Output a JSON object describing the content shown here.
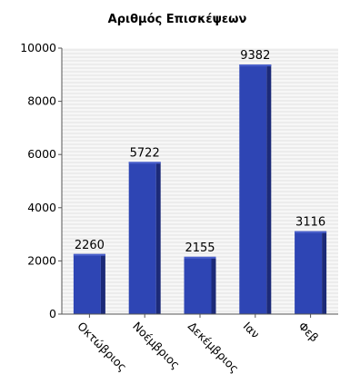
{
  "chart_data": {
    "type": "bar",
    "title": "Αριθμός Επισκέψεων",
    "categories": [
      "Οκτώβριος",
      "Νοέμβριος",
      "Δεκέμβριος",
      "Ιαν",
      "Φεβ"
    ],
    "values": [
      2260,
      5722,
      2155,
      9382,
      3116
    ],
    "ylim": [
      0,
      10000
    ],
    "yticks": [
      "0",
      "2000",
      "4000",
      "6000",
      "8000",
      "10000"
    ],
    "xlabel": "",
    "ylabel": "",
    "grid": "horizontal-stripes",
    "legend": "none"
  },
  "colors": {
    "bar_front": "#2e45b4",
    "bar_side": "#1c2a78",
    "bar_top": "#4a60cc",
    "grid_stripe": "#e8e8e8",
    "plot_background": "#f7f7f7"
  }
}
